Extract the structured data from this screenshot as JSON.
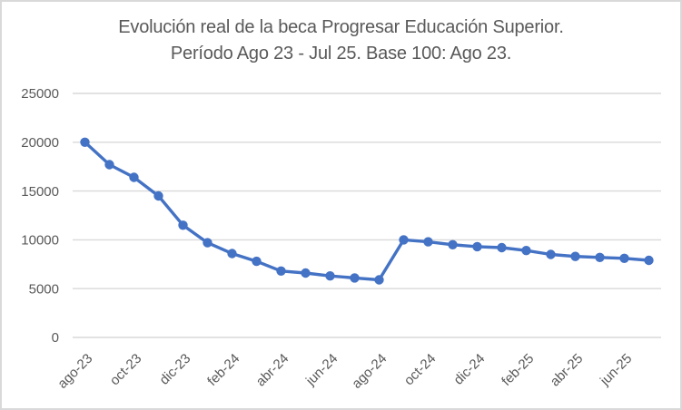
{
  "chart": {
    "title_line1": "Evolución real de la beca Progresar Educación Superior.",
    "title_line2": "Período Ago 23 - Jul 25. Base 100: Ago 23."
  },
  "colors": {
    "line": "#4472C4",
    "grid": "#D9D9D9",
    "text": "#595959",
    "frame_border": "#D9D9D9",
    "background": "#FFFFFF"
  },
  "chart_data": {
    "type": "line",
    "title": "Evolución real de la beca Progresar Educación Superior. Período Ago 23 - Jul 25. Base 100: Ago 23.",
    "categories": [
      "ago-23",
      "sep-23",
      "oct-23",
      "nov-23",
      "dic-23",
      "ene-24",
      "feb-24",
      "mar-24",
      "abr-24",
      "may-24",
      "jun-24",
      "jul-24",
      "ago-24",
      "sep-24",
      "oct-24",
      "nov-24",
      "dic-24",
      "ene-25",
      "feb-25",
      "mar-25",
      "abr-25",
      "may-25",
      "jun-25",
      "jul-25"
    ],
    "values": [
      20000,
      17700,
      16400,
      14500,
      11500,
      9700,
      8600,
      7800,
      6800,
      6600,
      6300,
      6100,
      5900,
      10000,
      9800,
      9500,
      9300,
      9200,
      8900,
      8500,
      8300,
      8200,
      8100,
      7900
    ],
    "x_tick_labels": [
      "ago-23",
      "oct-23",
      "dic-23",
      "feb-24",
      "abr-24",
      "jun-24",
      "ago-24",
      "oct-24",
      "dic-24",
      "feb-25",
      "abr-25",
      "jun-25"
    ],
    "x_tick_every": 2,
    "yticks": [
      0,
      5000,
      10000,
      15000,
      20000,
      25000
    ],
    "ylim": [
      0,
      25000
    ],
    "grid": true,
    "legend": false,
    "marker": "circle",
    "line_color": "#4472C4",
    "x_label_rotation": -45
  }
}
